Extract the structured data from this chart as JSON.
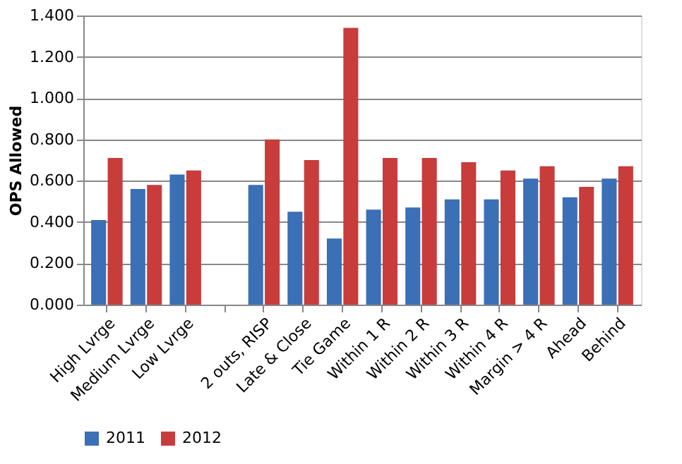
{
  "chart_data": {
    "type": "bar",
    "ylabel": "OPS Allowed",
    "categories": [
      "High Lvrge",
      "Medium Lvrge",
      "Low Lvrge",
      null,
      "2 outs, RISP",
      "Late & Close",
      "Tie Game",
      "Within 1 R",
      "Within 2 R",
      "Within 3 R",
      "Within 4 R",
      "Margin > 4 R",
      "Ahead",
      "Behind"
    ],
    "series": [
      {
        "name": "2011",
        "color": "#3b6fb6",
        "values": [
          0.41,
          0.56,
          0.63,
          null,
          0.58,
          0.45,
          0.32,
          0.46,
          0.47,
          0.51,
          0.51,
          0.61,
          0.52,
          0.61
        ]
      },
      {
        "name": "2012",
        "color": "#c83c3c",
        "values": [
          0.71,
          0.58,
          0.65,
          null,
          0.8,
          0.7,
          1.34,
          0.71,
          0.71,
          0.69,
          0.65,
          0.67,
          0.57,
          0.67
        ]
      }
    ],
    "ylim": [
      0,
      1.4
    ],
    "yticks": [
      {
        "value": 0,
        "label": "0.000"
      },
      {
        "value": 0.2,
        "label": "0.200"
      },
      {
        "value": 0.4,
        "label": "0.400"
      },
      {
        "value": 0.6,
        "label": "0.600"
      },
      {
        "value": 0.8,
        "label": "0.800"
      },
      {
        "value": 1.0,
        "label": "1.000"
      },
      {
        "value": 1.2,
        "label": "1.200"
      },
      {
        "value": 1.4,
        "label": "1.400"
      }
    ],
    "grid": "y",
    "legend": "bottom"
  }
}
